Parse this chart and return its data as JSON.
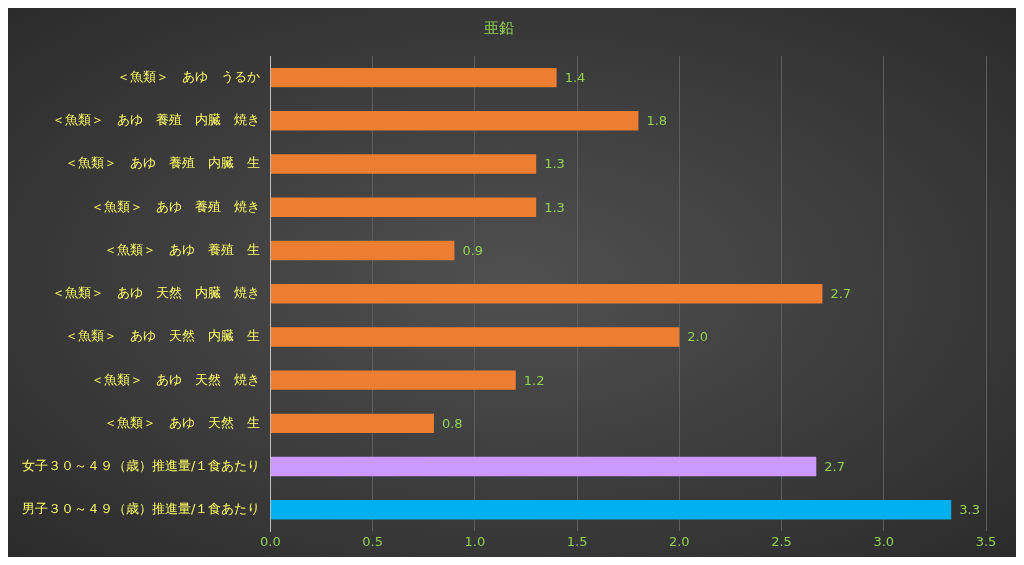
{
  "chart_data": {
    "type": "bar",
    "orientation": "horizontal",
    "title": "亜鉛",
    "categories": [
      "＜魚類＞　あゆ　うるか",
      "＜魚類＞　あゆ　養殖　内臓　焼き",
      "＜魚類＞　あゆ　養殖　内臓　生",
      "＜魚類＞　あゆ　養殖　焼き",
      "＜魚類＞　あゆ　養殖　生",
      "＜魚類＞　あゆ　天然　内臓　焼き",
      "＜魚類＞　あゆ　天然　内臓　生",
      "＜魚類＞　あゆ　天然　焼き",
      "＜魚類＞　あゆ　天然　生",
      "女子３０～４９（歳）推進量/１食あたり",
      "男子３０～４９（歳）推進量/１食あたり"
    ],
    "values": [
      1.4,
      1.8,
      1.3,
      1.3,
      0.9,
      2.7,
      2.0,
      1.2,
      0.8,
      2.67,
      3.33
    ],
    "value_labels": [
      "1.4",
      "1.8",
      "1.3",
      "1.3",
      "0.9",
      "2.7",
      "2.0",
      "1.2",
      "0.8",
      "2.7",
      "3.3"
    ],
    "colors": [
      "#ed7d31",
      "#ed7d31",
      "#ed7d31",
      "#ed7d31",
      "#ed7d31",
      "#ed7d31",
      "#ed7d31",
      "#ed7d31",
      "#ed7d31",
      "#cc99ff",
      "#00b0f0"
    ],
    "xlim": [
      0,
      3.5
    ],
    "xticks": [
      {
        "value": 0,
        "label": "0.0"
      },
      {
        "value": 0.5,
        "label": "0.5"
      },
      {
        "value": 1,
        "label": "1.0"
      },
      {
        "value": 1.5,
        "label": "1.5"
      },
      {
        "value": 2,
        "label": "2.0"
      },
      {
        "value": 2.5,
        "label": "2.5"
      },
      {
        "value": 3,
        "label": "3.0"
      },
      {
        "value": 3.5,
        "label": "3.5"
      }
    ],
    "grid": "x",
    "legend": false
  }
}
